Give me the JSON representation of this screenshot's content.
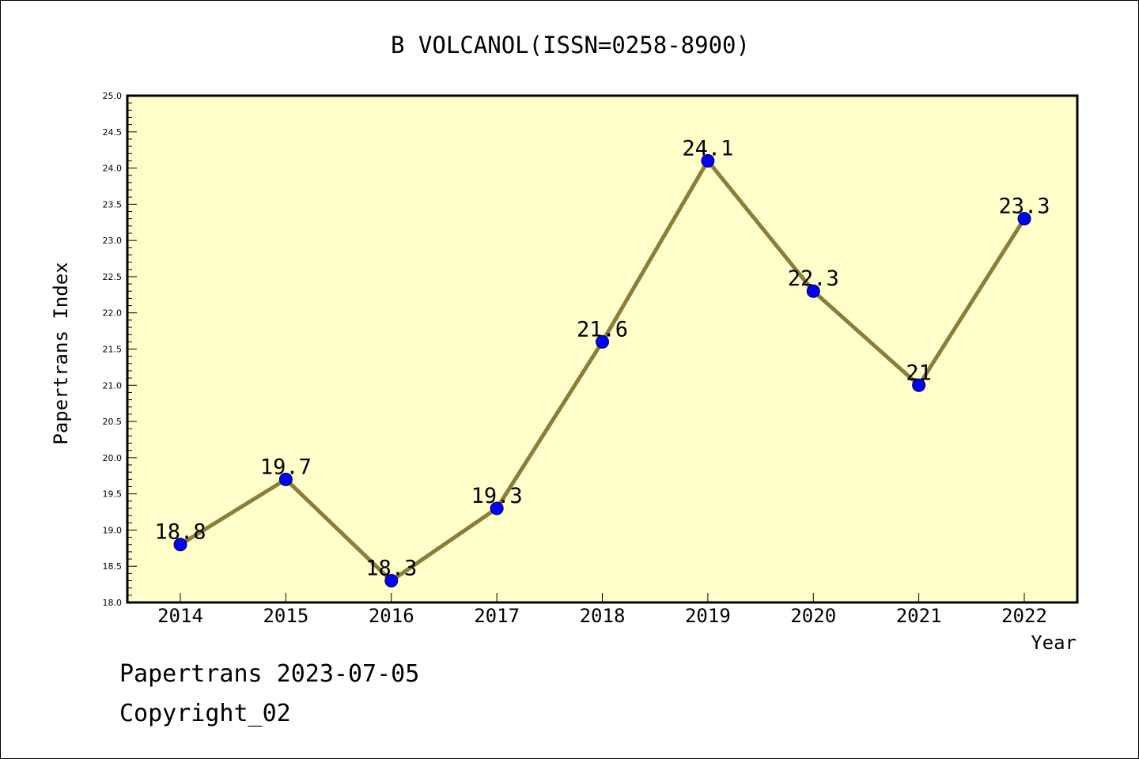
{
  "chart_data": {
    "type": "line",
    "title": "B VOLCANOL(ISSN=0258-8900)",
    "xlabel": "Year",
    "ylabel": "Papertrans Index",
    "categories": [
      "2014",
      "2015",
      "2016",
      "2017",
      "2018",
      "2019",
      "2020",
      "2021",
      "2022"
    ],
    "values": [
      18.8,
      19.7,
      18.3,
      19.3,
      21.6,
      24.1,
      22.3,
      21.0,
      23.3
    ],
    "value_labels": [
      "18.8",
      "19.7",
      "18.3",
      "19.3",
      "21.6",
      "24.1",
      "22.3",
      "21",
      "23.3"
    ],
    "ylim": [
      18.0,
      25.0
    ],
    "yticks": [
      "18.0",
      "18.5",
      "19.0",
      "19.5",
      "20.0",
      "20.5",
      "21.0",
      "21.5",
      "22.0",
      "22.5",
      "23.0",
      "23.5",
      "24.0",
      "24.5",
      "25.0"
    ],
    "grid": false,
    "colors": {
      "plot_background": "#ffffcc",
      "line": "#8b7d3a",
      "marker": "#0000ff"
    }
  },
  "footer": {
    "date_line": "Papertrans 2023-07-05",
    "copyright_line": "Copyright_02"
  }
}
